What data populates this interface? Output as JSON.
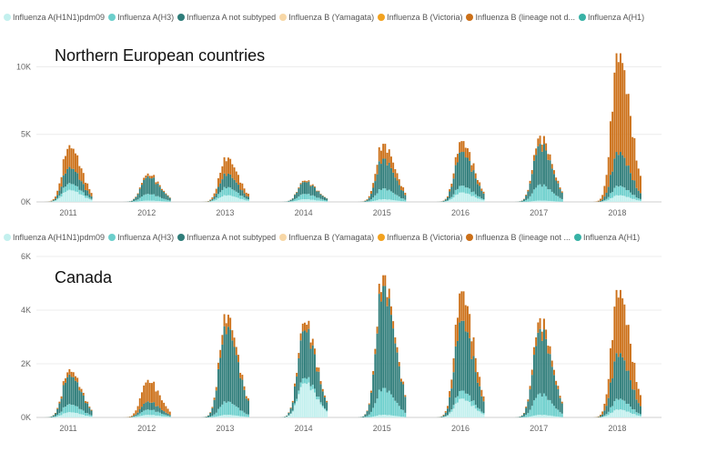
{
  "legend": {
    "panel1": [
      {
        "label": "Influenza A(H1N1)pdm09",
        "color": "#c3f0ee"
      },
      {
        "label": "Influenza A(H3)",
        "color": "#6ccfcc"
      },
      {
        "label": "Influenza A not subtyped",
        "color": "#2f7d7a"
      },
      {
        "label": "Influenza B (Yamagata)",
        "color": "#f7d7a6"
      },
      {
        "label": "Influenza B (Victoria)",
        "color": "#f2a21f"
      },
      {
        "label": "Influenza B (lineage not d...",
        "color": "#cc7018"
      },
      {
        "label": "Influenza A(H1)",
        "color": "#38b2a6"
      }
    ],
    "panel2": [
      {
        "label": "Influenza A(H1N1)pdm09",
        "color": "#c3f0ee"
      },
      {
        "label": "Influenza A(H3)",
        "color": "#6ccfcc"
      },
      {
        "label": "Influenza A not subtyped",
        "color": "#2f7d7a"
      },
      {
        "label": "Influenza B (Yamagata)",
        "color": "#f7d7a6"
      },
      {
        "label": "Influenza B (Victoria)",
        "color": "#f2a21f"
      },
      {
        "label": "Influenza B (lineage not ...",
        "color": "#cc7018"
      },
      {
        "label": "Influenza A(H1)",
        "color": "#38b2a6"
      }
    ]
  },
  "chart_data": [
    {
      "type": "bar",
      "title": "Northern European countries",
      "x_tick_labels": [
        "2011",
        "2012",
        "2013",
        "2014",
        "2015",
        "2016",
        "2017",
        "2018"
      ],
      "y_tick_labels": [
        "0K",
        "5K",
        "10K"
      ],
      "y_ticks": [
        0,
        5000,
        10000
      ],
      "ylim": [
        0,
        10500
      ],
      "series": [
        "Influenza A not subtyped",
        "Influenza A(H3)",
        "Influenza A(H1N1)pdm09",
        "Influenza B (lineage not determined)"
      ],
      "seasons": [
        {
          "year": "2011",
          "peak_total": 4200,
          "a_unsub": 1200,
          "a_h3": 500,
          "a_h1": 900,
          "b": 1600
        },
        {
          "year": "2012",
          "peak_total": 2100,
          "a_unsub": 1300,
          "a_h3": 500,
          "a_h1": 100,
          "b": 200
        },
        {
          "year": "2013",
          "peak_total": 3300,
          "a_unsub": 1000,
          "a_h3": 600,
          "a_h1": 500,
          "b": 1200
        },
        {
          "year": "2014",
          "peak_total": 1600,
          "a_unsub": 900,
          "a_h3": 400,
          "a_h1": 200,
          "b": 100
        },
        {
          "year": "2015",
          "peak_total": 4300,
          "a_unsub": 2200,
          "a_h3": 800,
          "a_h1": 200,
          "b": 1100
        },
        {
          "year": "2016",
          "peak_total": 4500,
          "a_unsub": 2500,
          "a_h3": 500,
          "a_h1": 700,
          "b": 800
        },
        {
          "year": "2017",
          "peak_total": 4900,
          "a_unsub": 3000,
          "a_h3": 1200,
          "a_h1": 100,
          "b": 600
        },
        {
          "year": "2018",
          "peak_total": 11000,
          "a_unsub": 2500,
          "a_h3": 700,
          "a_h1": 500,
          "b": 7300
        }
      ]
    },
    {
      "type": "bar",
      "title": "Canada",
      "x_tick_labels": [
        "2011",
        "2012",
        "2013",
        "2014",
        "2015",
        "2016",
        "2017",
        "2018"
      ],
      "y_tick_labels": [
        "0K",
        "2K",
        "4K",
        "6K"
      ],
      "y_ticks": [
        0,
        2000,
        4000,
        6000
      ],
      "ylim": [
        0,
        6000
      ],
      "series": [
        "Influenza A not subtyped",
        "Influenza A(H3)",
        "Influenza A(H1N1)pdm09",
        "Influenza B (lineage not determined)"
      ],
      "seasons": [
        {
          "year": "2011",
          "peak_total": 1800,
          "a_unsub": 1100,
          "a_h3": 300,
          "a_h1": 200,
          "b": 200
        },
        {
          "year": "2012",
          "peak_total": 1400,
          "a_unsub": 300,
          "a_h3": 200,
          "a_h1": 100,
          "b": 800
        },
        {
          "year": "2013",
          "peak_total": 3850,
          "a_unsub": 2800,
          "a_h3": 500,
          "a_h1": 100,
          "b": 450
        },
        {
          "year": "2014",
          "peak_total": 3600,
          "a_unsub": 1800,
          "a_h3": 200,
          "a_h1": 1300,
          "b": 300
        },
        {
          "year": "2015",
          "peak_total": 5300,
          "a_unsub": 3800,
          "a_h3": 1000,
          "a_h1": 100,
          "b": 400
        },
        {
          "year": "2016",
          "peak_total": 4700,
          "a_unsub": 2600,
          "a_h3": 300,
          "a_h1": 700,
          "b": 1100
        },
        {
          "year": "2017",
          "peak_total": 3700,
          "a_unsub": 2400,
          "a_h3": 800,
          "a_h1": 100,
          "b": 400
        },
        {
          "year": "2018",
          "peak_total": 4750,
          "a_unsub": 1700,
          "a_h3": 400,
          "a_h1": 300,
          "b": 2350
        }
      ]
    }
  ]
}
